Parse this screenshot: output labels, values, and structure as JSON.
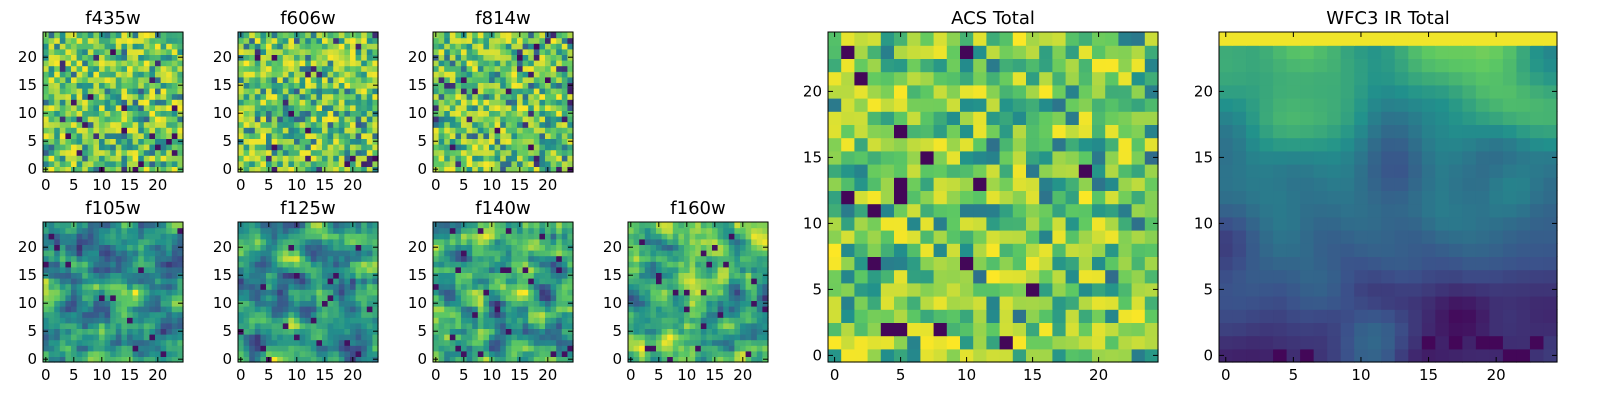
{
  "chart_data": [
    {
      "type": "heatmap",
      "title": "f435w",
      "xticks": [
        "0",
        "5",
        "10",
        "15",
        "20"
      ],
      "yticks": [
        "0",
        "5",
        "10",
        "15",
        "20"
      ],
      "xlim": [
        0,
        25
      ],
      "ylim": [
        0,
        25
      ],
      "grid_size": 25,
      "colormap": "viridis",
      "texture": "fine"
    },
    {
      "type": "heatmap",
      "title": "f606w",
      "xticks": [
        "0",
        "5",
        "10",
        "15",
        "20"
      ],
      "yticks": [
        "0",
        "5",
        "10",
        "15",
        "20"
      ],
      "xlim": [
        0,
        25
      ],
      "ylim": [
        0,
        25
      ],
      "grid_size": 25,
      "colormap": "viridis",
      "texture": "fine"
    },
    {
      "type": "heatmap",
      "title": "f814w",
      "xticks": [
        "0",
        "5",
        "10",
        "15",
        "20"
      ],
      "yticks": [
        "0",
        "5",
        "10",
        "15",
        "20"
      ],
      "xlim": [
        0,
        25
      ],
      "ylim": [
        0,
        25
      ],
      "grid_size": 25,
      "colormap": "viridis",
      "texture": "fine"
    },
    {
      "type": "heatmap",
      "title": "f105w",
      "xticks": [
        "0",
        "5",
        "10",
        "15",
        "20"
      ],
      "yticks": [
        "0",
        "5",
        "10",
        "15",
        "20"
      ],
      "xlim": [
        0,
        25
      ],
      "ylim": [
        0,
        25
      ],
      "grid_size": 25,
      "colormap": "viridis",
      "texture": "smooth"
    },
    {
      "type": "heatmap",
      "title": "f125w",
      "xticks": [
        "0",
        "5",
        "10",
        "15",
        "20"
      ],
      "yticks": [
        "0",
        "5",
        "10",
        "15",
        "20"
      ],
      "xlim": [
        0,
        25
      ],
      "ylim": [
        0,
        25
      ],
      "grid_size": 25,
      "colormap": "viridis",
      "texture": "smooth"
    },
    {
      "type": "heatmap",
      "title": "f140w",
      "xticks": [
        "0",
        "5",
        "10",
        "15",
        "20"
      ],
      "yticks": [
        "0",
        "5",
        "10",
        "15",
        "20"
      ],
      "xlim": [
        0,
        25
      ],
      "ylim": [
        0,
        25
      ],
      "grid_size": 25,
      "colormap": "viridis",
      "texture": "smooth"
    },
    {
      "type": "heatmap",
      "title": "f160w",
      "xticks": [
        "0",
        "5",
        "10",
        "15",
        "20"
      ],
      "yticks": [
        "0",
        "5",
        "10",
        "15",
        "20"
      ],
      "xlim": [
        0,
        25
      ],
      "ylim": [
        0,
        25
      ],
      "grid_size": 25,
      "colormap": "viridis",
      "texture": "smooth"
    },
    {
      "type": "heatmap",
      "title": "ACS Total",
      "xticks": [
        "0",
        "5",
        "10",
        "15",
        "20"
      ],
      "yticks": [
        "0",
        "5",
        "10",
        "15",
        "20"
      ],
      "xlim": [
        0,
        25
      ],
      "ylim": [
        0,
        25
      ],
      "grid_size": 25,
      "colormap": "viridis",
      "texture": "blocky"
    },
    {
      "type": "heatmap",
      "title": "WFC3 IR Total",
      "xticks": [
        "0",
        "5",
        "10",
        "15",
        "20"
      ],
      "yticks": [
        "0",
        "5",
        "10",
        "15",
        "20"
      ],
      "xlim": [
        0,
        25
      ],
      "ylim": [
        0,
        25
      ],
      "grid_size": 25,
      "colormap": "viridis",
      "texture": "gradient"
    }
  ],
  "colors": {
    "viridis": [
      "#440154",
      "#3b528b",
      "#21918c",
      "#5ec962",
      "#fde725"
    ],
    "frame": "#000000",
    "background": "#ffffff"
  }
}
